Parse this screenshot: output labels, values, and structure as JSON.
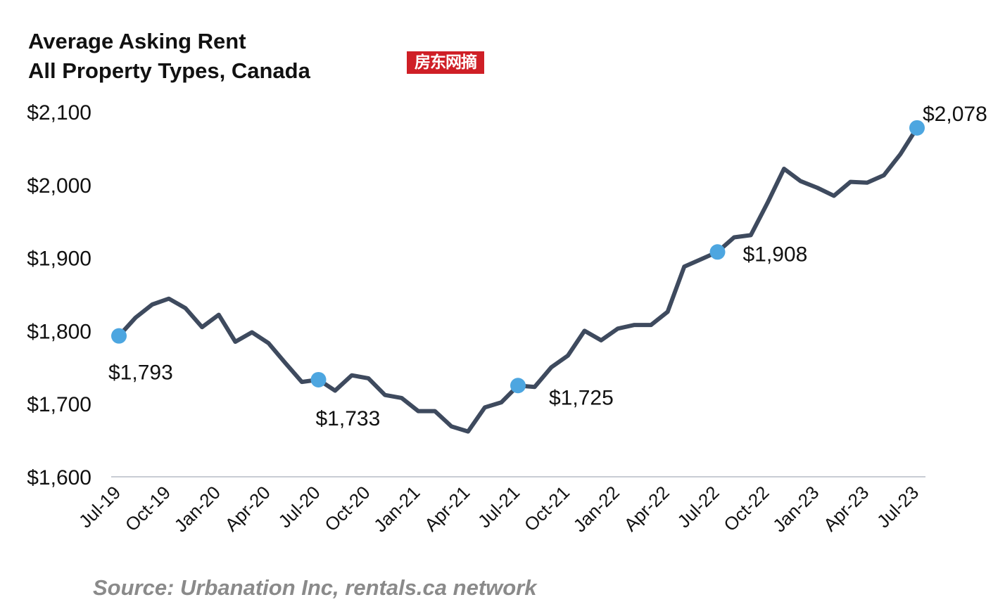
{
  "title": {
    "line1": "Average Asking Rent",
    "line2": "All Property Types, Canada"
  },
  "watermark": "房东网摘",
  "source": "Source: Urbanation Inc, rentals.ca network",
  "colors": {
    "line": "#3e4a5e",
    "marker": "#4da6e0",
    "axis": "#c8ccd4"
  },
  "chart_data": {
    "type": "line",
    "title": "Average Asking Rent All Property Types, Canada",
    "xlabel": "",
    "ylabel": "",
    "ylim": [
      1600,
      2100
    ],
    "yticks": [
      1600,
      1700,
      1800,
      1900,
      2000,
      2100
    ],
    "ytick_labels": [
      "$1,600",
      "$1,700",
      "$1,800",
      "$1,900",
      "$2,000",
      "$2,100"
    ],
    "x": [
      "Jul-19",
      "Aug-19",
      "Sep-19",
      "Oct-19",
      "Nov-19",
      "Dec-19",
      "Jan-20",
      "Feb-20",
      "Mar-20",
      "Apr-20",
      "May-20",
      "Jun-20",
      "Jul-20",
      "Aug-20",
      "Sep-20",
      "Oct-20",
      "Nov-20",
      "Dec-20",
      "Jan-21",
      "Feb-21",
      "Mar-21",
      "Apr-21",
      "May-21",
      "Jun-21",
      "Jul-21",
      "Aug-21",
      "Sep-21",
      "Oct-21",
      "Nov-21",
      "Dec-21",
      "Jan-22",
      "Feb-22",
      "Mar-22",
      "Apr-22",
      "May-22",
      "Jun-22",
      "Jul-22",
      "Aug-22",
      "Sep-22",
      "Oct-22",
      "Nov-22",
      "Dec-22",
      "Jan-23",
      "Feb-23",
      "Mar-23",
      "Apr-23",
      "May-23",
      "Jun-23",
      "Jul-23"
    ],
    "xtick_labels": [
      "Jul-19",
      "Oct-19",
      "Jan-20",
      "Apr-20",
      "Jul-20",
      "Oct-20",
      "Jan-21",
      "Apr-21",
      "Jul-21",
      "Oct-21",
      "Jan-22",
      "Apr-22",
      "Jul-22",
      "Oct-22",
      "Jan-23",
      "Apr-23",
      "Jul-23"
    ],
    "series": [
      {
        "values": [
          1793,
          1818,
          1836,
          1844,
          1831,
          1805,
          1822,
          1785,
          1798,
          1783,
          1756,
          1730,
          1733,
          1718,
          1739,
          1735,
          1712,
          1708,
          1690,
          1690,
          1669,
          1662,
          1695,
          1702,
          1725,
          1723,
          1750,
          1766,
          1800,
          1787,
          1803,
          1808,
          1808,
          1826,
          1888,
          1898,
          1908,
          1928,
          1931,
          1975,
          2022,
          2005,
          1996,
          1985,
          2004,
          2003,
          2013,
          2042,
          2078
        ]
      }
    ],
    "annotations": [
      {
        "x": "Jul-19",
        "value": 1793,
        "label": "$1,793"
      },
      {
        "x": "Jul-20",
        "value": 1733,
        "label": "$1,733"
      },
      {
        "x": "Jul-21",
        "value": 1725,
        "label": "$1,725"
      },
      {
        "x": "Jul-22",
        "value": 1908,
        "label": "$1,908"
      },
      {
        "x": "Jul-23",
        "value": 2078,
        "label": "$2,078"
      }
    ],
    "grid": false,
    "legend": "none"
  }
}
